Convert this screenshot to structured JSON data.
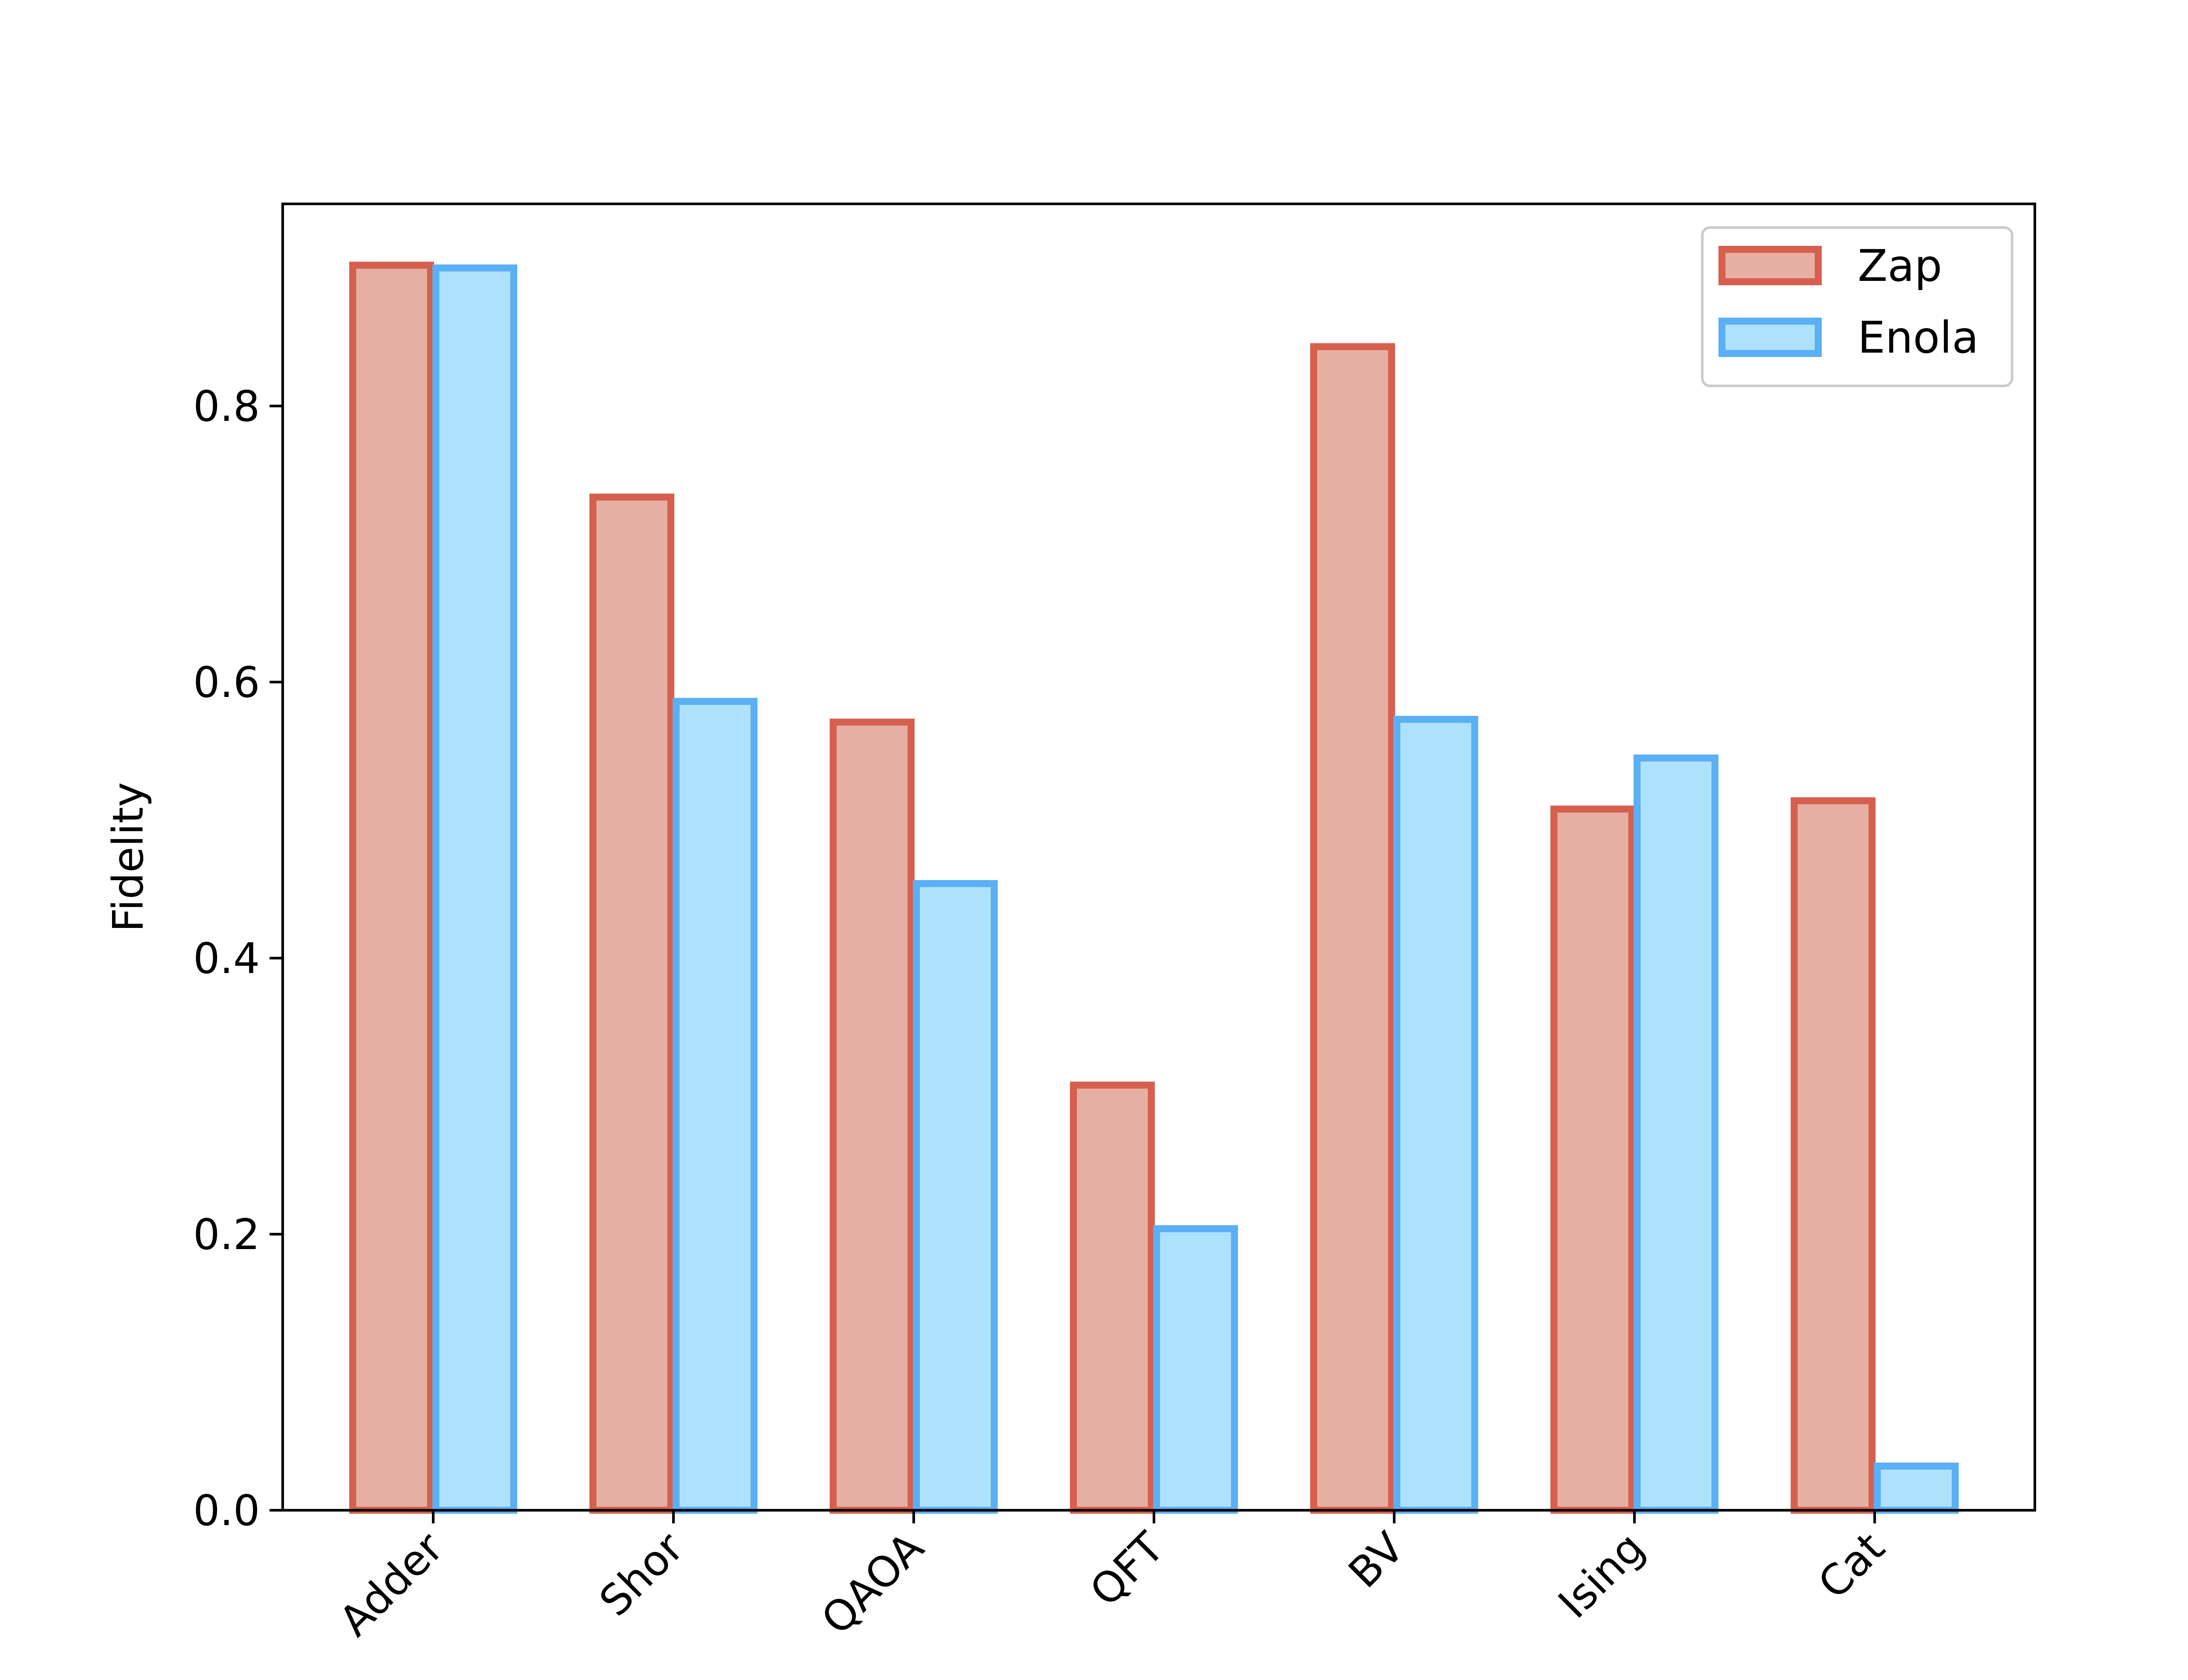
{
  "chart_data": {
    "type": "bar",
    "title": "",
    "xlabel": "",
    "ylabel": "Fidelity",
    "categories": [
      "Adder",
      "Shor",
      "QAOA",
      "QFT",
      "BV",
      "Ising",
      "Cat"
    ],
    "series": [
      {
        "name": "Zap",
        "values": [
          0.902,
          0.734,
          0.571,
          0.308,
          0.843,
          0.508,
          0.514
        ],
        "fill": "#e5b0a3",
        "stroke": "#d6604d"
      },
      {
        "name": "Enola",
        "values": [
          0.9,
          0.586,
          0.454,
          0.204,
          0.573,
          0.545,
          0.032
        ],
        "fill": "#aee2fc",
        "stroke": "#5aaff5"
      }
    ],
    "ylim": [
      0,
      0.95
    ],
    "yticks": [
      "0.0",
      "0.2",
      "0.4",
      "0.6",
      "0.8"
    ],
    "legend_position": "top-right",
    "grid": false
  }
}
